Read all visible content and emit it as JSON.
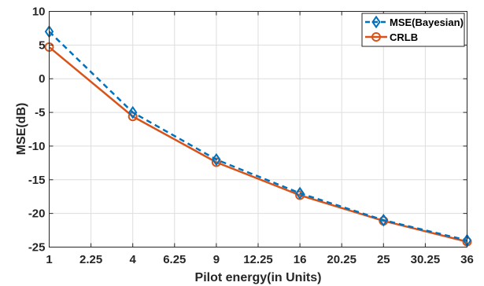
{
  "chart_data": {
    "type": "line",
    "title": "",
    "xlabel": "Pilot energy(in Units)",
    "ylabel": "MSE(dB)",
    "xlim": [
      1,
      36
    ],
    "ylim": [
      -25,
      10
    ],
    "xticks": [
      1,
      2.25,
      4,
      6.25,
      9,
      12.25,
      16,
      20.25,
      25,
      30.25,
      36
    ],
    "xtick_labels": [
      "1",
      "2.25",
      "4",
      "6.25",
      "9",
      "12.25",
      "16",
      "20.25",
      "25",
      "30.25",
      "36"
    ],
    "yticks": [
      -25,
      -20,
      -15,
      -10,
      -5,
      0,
      5,
      10
    ],
    "ytick_labels": [
      "-25",
      "-20",
      "-15",
      "-10",
      "-5",
      "0",
      "5",
      "10"
    ],
    "x_scale": "sqrt",
    "grid": true,
    "legend_position": "top-right",
    "x": [
      1,
      4,
      9,
      16,
      25,
      36
    ],
    "series": [
      {
        "name": "MSE(Bayesian)",
        "values": [
          7.0,
          -5.0,
          -12.0,
          -17.0,
          -21.0,
          -24.0
        ],
        "color": "#0072BD",
        "line_style": "dashed",
        "marker": "diamond"
      },
      {
        "name": "CRLB",
        "values": [
          4.7,
          -5.6,
          -12.4,
          -17.3,
          -21.1,
          -24.2
        ],
        "color": "#D95319",
        "line_style": "solid",
        "marker": "circle"
      }
    ]
  }
}
